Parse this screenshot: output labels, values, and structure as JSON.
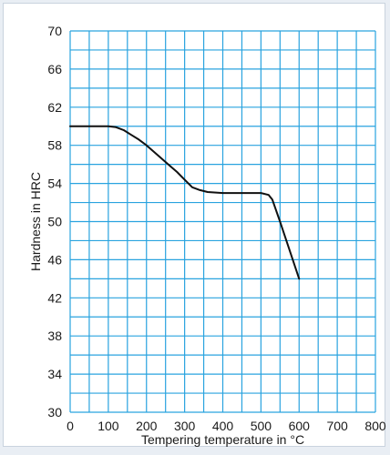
{
  "chart_data": {
    "type": "line",
    "title": "",
    "xlabel": "Tempering temperature in °C",
    "ylabel": "Hardness in HRC",
    "xlim": [
      0,
      800
    ],
    "ylim": [
      30,
      70
    ],
    "x_ticks": [
      0,
      100,
      200,
      300,
      400,
      500,
      600,
      700,
      800
    ],
    "y_ticks": [
      30,
      34,
      38,
      42,
      46,
      50,
      54,
      58,
      62,
      66,
      70
    ],
    "x_minor_step": 50,
    "y_minor_step": 2,
    "grid": true,
    "series": [
      {
        "x": [
          0,
          50,
          100,
          120,
          140,
          160,
          180,
          200,
          220,
          240,
          260,
          280,
          300,
          320,
          340,
          360,
          400,
          450,
          500,
          520,
          530,
          550,
          575,
          600
        ],
        "y": [
          60,
          60,
          60,
          59.9,
          59.6,
          59.1,
          58.6,
          58,
          57.3,
          56.6,
          55.9,
          55.2,
          54.4,
          53.6,
          53.3,
          53.1,
          53,
          53,
          53,
          52.8,
          52.3,
          50,
          47,
          44
        ]
      }
    ]
  },
  "colors": {
    "grid": "#29a3df",
    "line": "#111111",
    "background": "#e9eef4",
    "plot": "#ffffff"
  }
}
